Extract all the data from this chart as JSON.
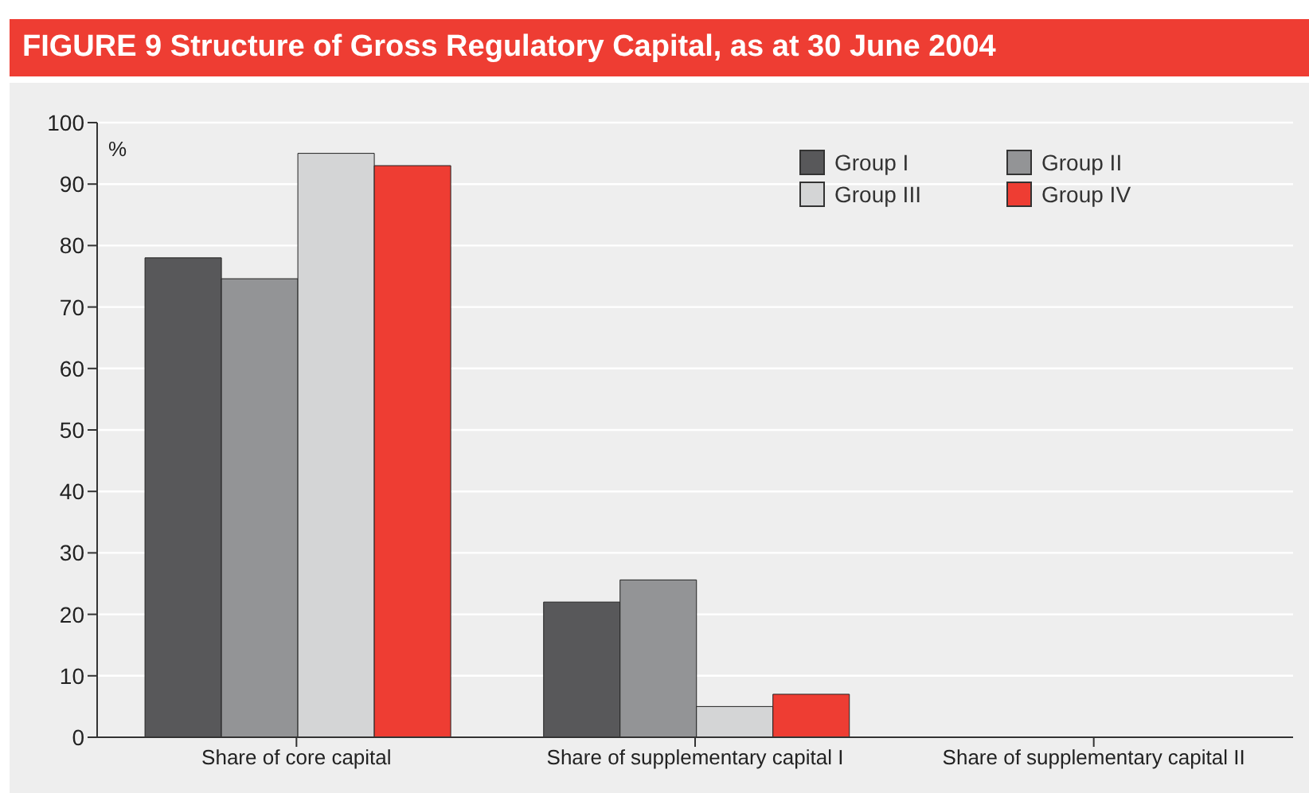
{
  "chart_data": {
    "type": "bar",
    "title": "FIGURE 9  Structure of Gross Regulatory Capital, as at 30 June 2004",
    "ylabel": "%",
    "categories": [
      "Share of core capital",
      "Share of supplementary capital I",
      "Share of supplementary capital II"
    ],
    "series": [
      {
        "name": "Group I",
        "color": "#58585a",
        "values": [
          78,
          22,
          0
        ]
      },
      {
        "name": "Group II",
        "color": "#939496",
        "values": [
          74.6,
          25.6,
          0
        ]
      },
      {
        "name": "Group III",
        "color": "#d4d5d6",
        "values": [
          95,
          5,
          0
        ]
      },
      {
        "name": "Group IV",
        "color": "#ee3d33",
        "values": [
          93,
          7,
          0
        ]
      }
    ],
    "ylim": [
      0,
      100
    ],
    "yticks": [
      0,
      10,
      20,
      30,
      40,
      50,
      60,
      70,
      80,
      90,
      100
    ],
    "grid": "y",
    "legend": "top right"
  }
}
